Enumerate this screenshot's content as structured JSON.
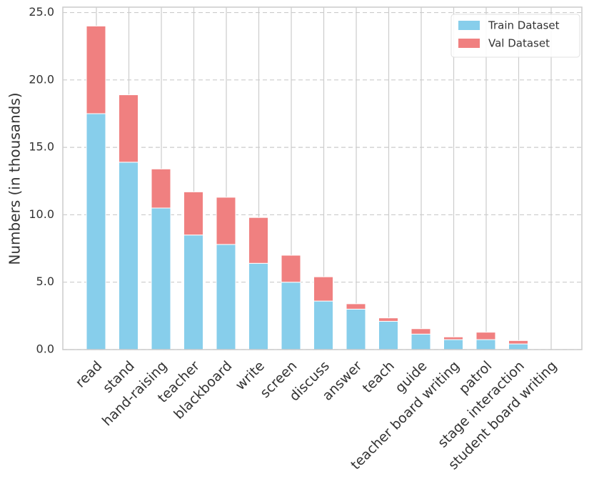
{
  "chart_data": {
    "type": "bar",
    "stacked": true,
    "y_label": "Numbers (in thousands)",
    "categories": [
      "read",
      "stand",
      "hand-raising",
      "teacher",
      "blackboard",
      "write",
      "screen",
      "discuss",
      "answer",
      "teach",
      "guide",
      "teacher board writing",
      "patrol",
      "stage interaction",
      "student board writing"
    ],
    "series": [
      {
        "name": "Train Dataset",
        "color": "#87CEEB",
        "values": [
          17.5,
          13.9,
          10.5,
          8.5,
          7.8,
          6.4,
          5.0,
          3.6,
          3.0,
          2.1,
          1.15,
          0.74,
          0.74,
          0.42,
          0
        ]
      },
      {
        "name": "Val Dataset",
        "color": "#F08080",
        "values": [
          6.5,
          5.0,
          2.9,
          3.2,
          3.5,
          3.4,
          2.0,
          1.8,
          0.4,
          0.25,
          0.4,
          0.2,
          0.55,
          0.25,
          0
        ]
      }
    ],
    "ylim": [
      0,
      25.4
    ],
    "yticks": [
      {
        "value": 0,
        "label": "0.0"
      },
      {
        "value": 5,
        "label": "5.0"
      },
      {
        "value": 10,
        "label": "10.0"
      },
      {
        "value": 15,
        "label": "15.0"
      },
      {
        "value": 20,
        "label": "20.0"
      },
      {
        "value": 25,
        "label": "25.0"
      }
    ],
    "grid": true,
    "legend": "upper right"
  }
}
